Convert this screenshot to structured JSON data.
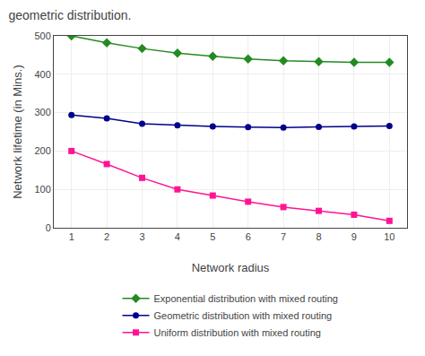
{
  "chart_data": {
    "type": "line",
    "title": "geometric distribution.",
    "xlabel": "Network radius",
    "ylabel": "Network lifetime (in Mins.)",
    "x": [
      1,
      2,
      3,
      4,
      5,
      6,
      7,
      8,
      9,
      10
    ],
    "series": [
      {
        "name": "Exponential distribution with mixed routing",
        "color": "#228B22",
        "marker": "diamond",
        "line_style": "solid",
        "values": [
          500,
          482,
          467,
          455,
          447,
          440,
          435,
          433,
          431,
          431
        ]
      },
      {
        "name": "Geometric distribution with mixed routing",
        "color": "#00008B",
        "marker": "circle",
        "line_style": "solid",
        "values": [
          294,
          285,
          271,
          267,
          264,
          262,
          261,
          263,
          264,
          265
        ]
      },
      {
        "name": "Uniform distribution with mixed routing",
        "color": "#FF1493",
        "marker": "square",
        "line_style": "solid",
        "values": [
          200,
          166,
          130,
          100,
          84,
          68,
          54,
          44,
          34,
          18
        ]
      }
    ],
    "xlim": [
      0.5,
      10.5
    ],
    "xticks": [
      1,
      2,
      3,
      4,
      5,
      6,
      7,
      8,
      9,
      10
    ],
    "ylim": [
      0,
      500
    ],
    "yticks": [
      0,
      100,
      200,
      300,
      400,
      500
    ],
    "grid": true,
    "legend": "bottom"
  }
}
